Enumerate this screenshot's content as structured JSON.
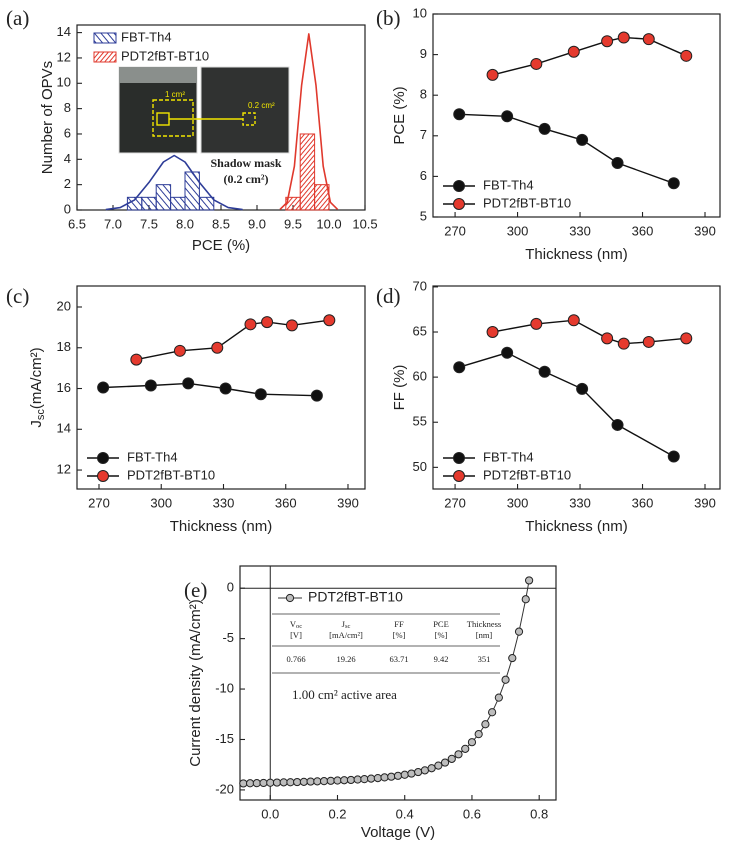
{
  "chart_data": [
    {
      "type": "histogram",
      "panel_label": "(a)",
      "xlabel": "PCE (%)",
      "ylabel": "Number of OPVs",
      "xlim": [
        6.5,
        10.5
      ],
      "ylim": [
        0,
        14.6
      ],
      "xticks": [
        6.5,
        {
          "value": 7,
          "label": "7.0"
        },
        7.5,
        {
          "value": 8,
          "label": "8.0"
        },
        8.5,
        {
          "value": 9,
          "label": "9.0"
        },
        9.5,
        {
          "value": 10,
          "label": "10.0"
        },
        10.5
      ],
      "yticks": [
        0,
        2,
        4,
        6,
        8,
        10,
        12,
        14
      ],
      "legend": "upper left",
      "series": [
        {
          "name": "FBT-Th4",
          "color": "#2e3d98",
          "bins": [
            7.2,
            7.4,
            7.6,
            7.8,
            8.0,
            8.2,
            8.4
          ],
          "values": [
            1,
            1,
            2,
            1,
            3,
            1
          ],
          "fit": {
            "x": [
              6.9,
              7.1,
              7.3,
              7.5,
              7.7,
              7.85,
              8.0,
              8.2,
              8.4,
              8.6,
              8.8
            ],
            "values": [
              0.03,
              0.19,
              0.8,
              2.18,
              3.79,
              4.3,
              3.79,
              2.18,
              0.8,
              0.19,
              0.03
            ]
          }
        },
        {
          "name": "PDT2fBT-BT10",
          "color": "#e0392d",
          "bins": [
            9.4,
            9.6,
            9.8,
            10.0
          ],
          "values": [
            1,
            6,
            2
          ],
          "fit": {
            "x": [
              9.32,
              9.42,
              9.52,
              9.62,
              9.72,
              9.82,
              9.92,
              10.02,
              10.12
            ],
            "values": [
              0.05,
              0.61,
              3.46,
              9.83,
              13.9,
              9.83,
              3.46,
              0.61,
              0.05
            ]
          }
        }
      ],
      "annotations": {
        "left_photo": "1 cm²",
        "right_photo": "0.2 cm²",
        "caption": [
          "Shadow mask",
          "(0.2 cm²)"
        ]
      }
    },
    {
      "type": "line",
      "panel_label": "(b)",
      "xlabel": "Thickness (nm)",
      "ylabel": "PCE (%)",
      "xlim": [
        259.4,
        397.2
      ],
      "ylim": [
        5,
        10
      ],
      "xticks": [
        270,
        300,
        330,
        360,
        390
      ],
      "yticks": [
        5,
        6,
        7,
        8,
        9,
        10
      ],
      "legend": "lower left",
      "series": [
        {
          "name": "FBT-Th4",
          "color": "#111111",
          "x": [
            272,
            295,
            313,
            331,
            348,
            375
          ],
          "values": [
            7.53,
            7.48,
            7.17,
            6.9,
            6.33,
            5.83
          ]
        },
        {
          "name": "PDT2fBT-BT10",
          "color": "#e53a2e",
          "x": [
            288,
            309,
            327,
            343,
            351,
            363,
            381
          ],
          "values": [
            8.5,
            8.77,
            9.07,
            9.33,
            9.42,
            9.38,
            8.97
          ]
        }
      ]
    },
    {
      "type": "line",
      "panel_label": "(c)",
      "xlabel": "Thickness (nm)",
      "ylabel": [
        "J",
        "sc",
        "(mA/cm²)"
      ],
      "xlim": [
        259.4,
        398.2
      ],
      "ylim": [
        11.07,
        21.03
      ],
      "xticks": [
        270,
        300,
        330,
        360,
        390
      ],
      "yticks": [
        12,
        14,
        16,
        18,
        20
      ],
      "legend": "lower left",
      "series": [
        {
          "name": "FBT-Th4",
          "color": "#111111",
          "x": [
            272,
            295,
            313,
            331,
            348,
            375
          ],
          "values": [
            16.05,
            16.15,
            16.25,
            16.0,
            15.72,
            15.65
          ]
        },
        {
          "name": "PDT2fBT-BT10",
          "color": "#e53a2e",
          "x": [
            288,
            309,
            327,
            343,
            351,
            363,
            381
          ],
          "values": [
            17.42,
            17.85,
            18.0,
            19.15,
            19.26,
            19.1,
            19.35
          ]
        }
      ]
    },
    {
      "type": "line",
      "panel_label": "(d)",
      "xlabel": "Thickness (nm)",
      "ylabel": "FF (%)",
      "xlim": [
        259.4,
        397.2
      ],
      "ylim": [
        47.6,
        70.1
      ],
      "xticks": [
        270,
        300,
        330,
        360,
        390
      ],
      "yticks": [
        50,
        55,
        60,
        65,
        70
      ],
      "legend": "lower left",
      "series": [
        {
          "name": "FBT-Th4",
          "color": "#111111",
          "x": [
            272,
            295,
            313,
            331,
            348,
            375
          ],
          "values": [
            61.1,
            62.7,
            60.6,
            58.7,
            54.7,
            51.2
          ]
        },
        {
          "name": "PDT2fBT-BT10",
          "color": "#e53a2e",
          "x": [
            288,
            309,
            327,
            343,
            351,
            363,
            381
          ],
          "values": [
            65.0,
            65.9,
            66.3,
            64.3,
            63.71,
            63.9,
            64.3
          ]
        }
      ]
    },
    {
      "type": "jv",
      "panel_label": "(e)",
      "xlabel": "Voltage (V)",
      "ylabel": "Current density (mA/cm²)",
      "xlim": [
        -0.09,
        0.85
      ],
      "ylim": [
        -21,
        2.2
      ],
      "xticks": [
        {
          "value": 0,
          "label": "0.0"
        },
        0.2,
        0.4,
        0.6,
        0.8
      ],
      "yticks": [
        -20,
        -15,
        -10,
        -5,
        0
      ],
      "zero_lines": true,
      "legend": "upper left",
      "series": [
        {
          "name": "PDT2fBT-BT10",
          "color": "#333333",
          "x": [
            -0.08,
            -0.06,
            -0.04,
            -0.02,
            0.0,
            0.02,
            0.04,
            0.06,
            0.08,
            0.1,
            0.12,
            0.14,
            0.16,
            0.18,
            0.2,
            0.22,
            0.24,
            0.26,
            0.28,
            0.3,
            0.32,
            0.34,
            0.36,
            0.38,
            0.4,
            0.42,
            0.44,
            0.46,
            0.48,
            0.5,
            0.52,
            0.54,
            0.56,
            0.58,
            0.6,
            0.62,
            0.64,
            0.66,
            0.68,
            0.7,
            0.72,
            0.74,
            0.76,
            0.77
          ],
          "values": [
            -19.36,
            -19.34,
            -19.33,
            -19.31,
            -19.29,
            -19.27,
            -19.25,
            -19.24,
            -19.22,
            -19.2,
            -19.17,
            -19.15,
            -19.13,
            -19.1,
            -19.07,
            -19.04,
            -19.01,
            -18.97,
            -18.93,
            -18.88,
            -18.83,
            -18.76,
            -18.69,
            -18.6,
            -18.5,
            -18.38,
            -18.23,
            -18.06,
            -17.85,
            -17.59,
            -17.29,
            -16.92,
            -16.47,
            -15.93,
            -15.27,
            -14.47,
            -13.49,
            -12.3,
            -10.85,
            -9.08,
            -6.93,
            -4.31,
            -1.1,
            0.77
          ]
        }
      ],
      "table": {
        "headers": [
          [
            "V",
            "oc",
            "[V]"
          ],
          [
            "J",
            "sc",
            "[mA/cm²]"
          ],
          [
            "FF",
            "[%]"
          ],
          [
            "PCE",
            "[%]"
          ],
          [
            "Thickness",
            "[nm]"
          ]
        ],
        "row": [
          "0.766",
          "19.26",
          "63.71",
          "9.42",
          "351"
        ]
      },
      "annotation": "1.00 cm² active area"
    }
  ]
}
